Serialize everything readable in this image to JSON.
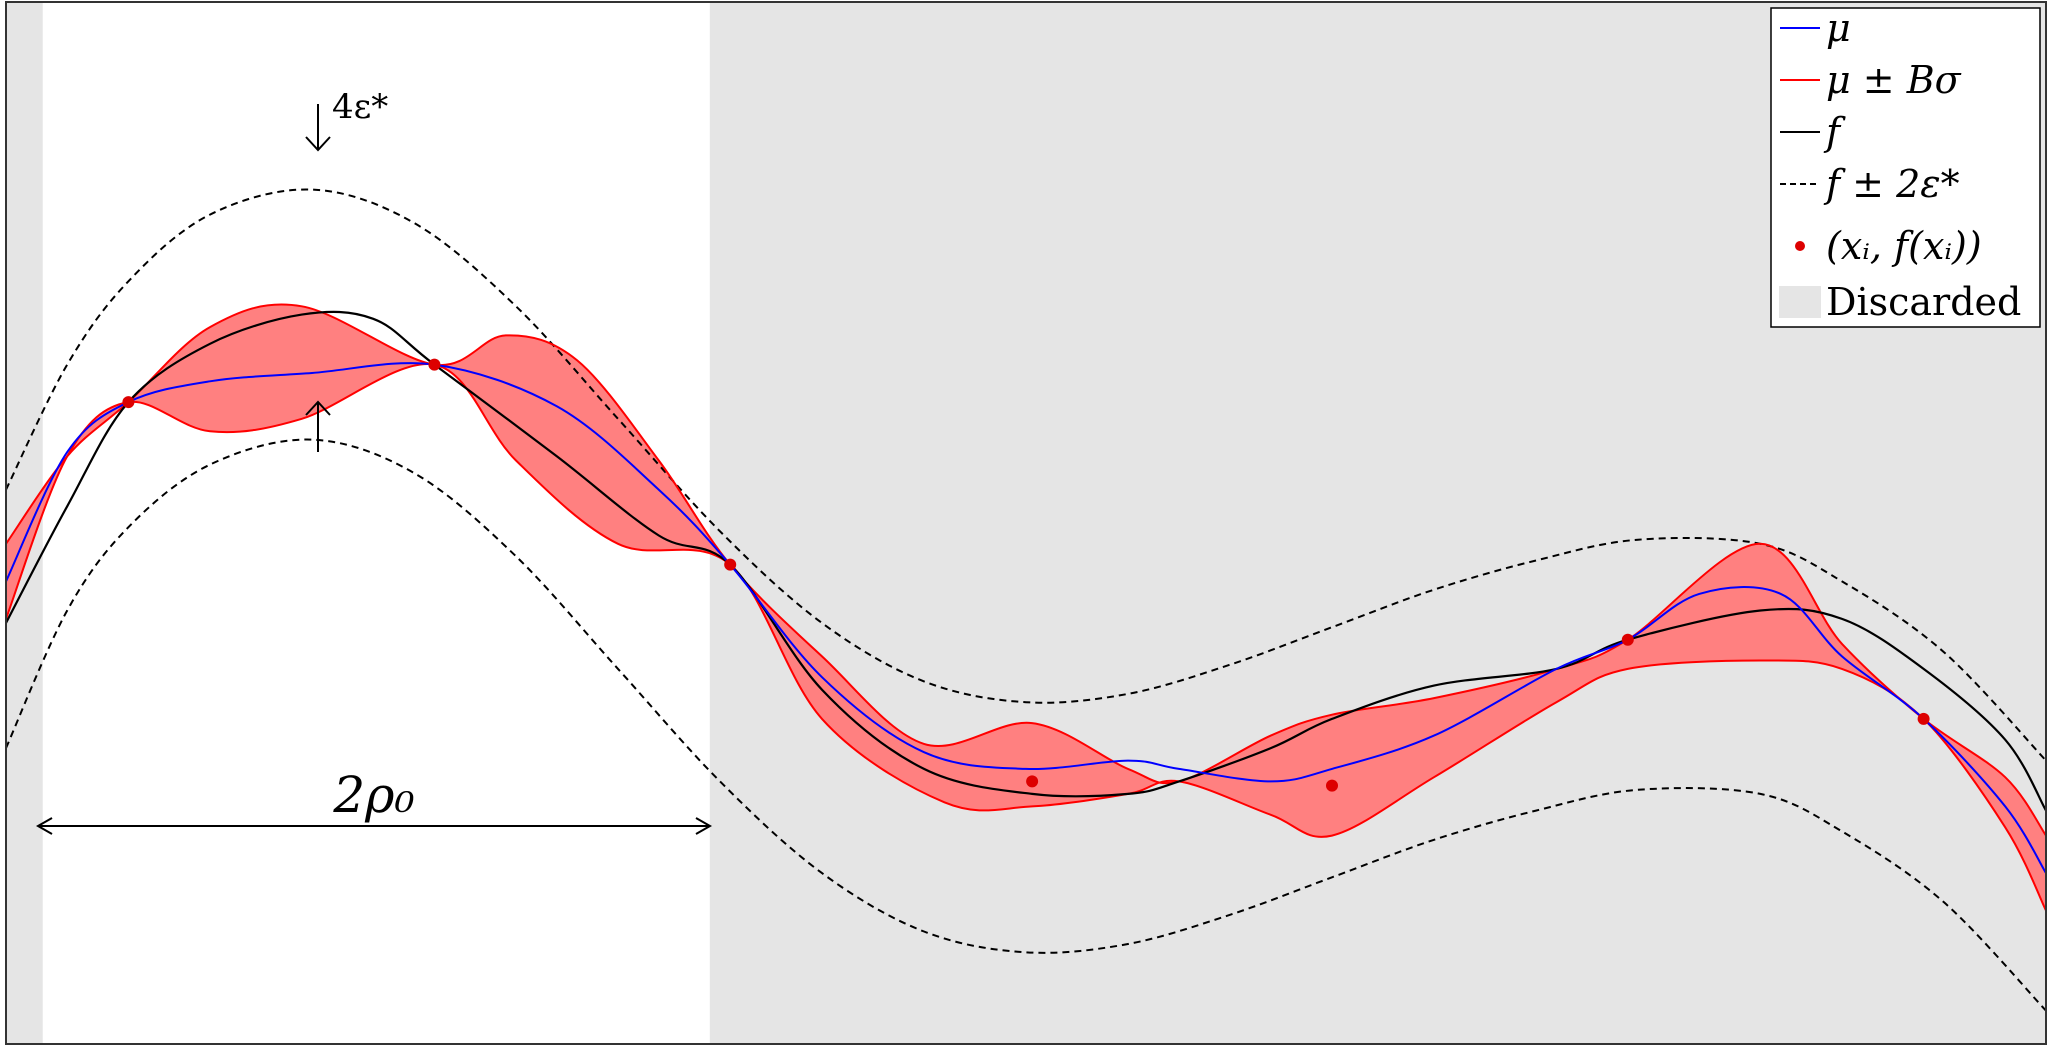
{
  "chart_data": {
    "type": "line",
    "title": "",
    "xlabel": "",
    "ylabel": "",
    "xlim": [
      0,
      1
    ],
    "ylim": [
      -1.5,
      1.0
    ],
    "grid": false,
    "legend_position": "top-right",
    "discarded_regions": [
      [
        0.0,
        0.018
      ],
      [
        0.345,
        1.0
      ]
    ],
    "series": [
      {
        "name": "μ",
        "color": "#0000ff",
        "style": "solid",
        "x": [
          0.0,
          0.03,
          0.06,
          0.1,
          0.15,
          0.21,
          0.27,
          0.32,
          0.355,
          0.4,
          0.45,
          0.5,
          0.55,
          0.575,
          0.62,
          0.65,
          0.7,
          0.76,
          0.795,
          0.83,
          0.87,
          0.9,
          0.94,
          0.98,
          1.0
        ],
        "y": [
          -0.39,
          -0.08,
          0.04,
          0.09,
          0.11,
          0.13,
          0.03,
          -0.17,
          -0.35,
          -0.62,
          -0.8,
          -0.84,
          -0.82,
          -0.84,
          -0.87,
          -0.84,
          -0.76,
          -0.6,
          -0.53,
          -0.42,
          -0.42,
          -0.57,
          -0.72,
          -0.93,
          -1.09
        ]
      },
      {
        "name": "μ ± Bσ (upper)",
        "color": "#ff0000",
        "style": "solid",
        "x": [
          0.0,
          0.03,
          0.06,
          0.1,
          0.145,
          0.21,
          0.245,
          0.28,
          0.32,
          0.355,
          0.4,
          0.45,
          0.503,
          0.55,
          0.575,
          0.62,
          0.65,
          0.7,
          0.76,
          0.795,
          0.86,
          0.9,
          0.94,
          0.98,
          1.0
        ],
        "y": [
          -0.3,
          -0.09,
          0.04,
          0.22,
          0.27,
          0.13,
          0.2,
          0.14,
          -0.1,
          -0.35,
          -0.57,
          -0.78,
          -0.73,
          -0.84,
          -0.87,
          -0.76,
          -0.71,
          -0.67,
          -0.6,
          -0.53,
          -0.3,
          -0.54,
          -0.72,
          -0.86,
          -1.0
        ]
      },
      {
        "name": "μ ± Bσ (lower)",
        "color": "#ff0000",
        "style": "solid",
        "x": [
          0.0,
          0.03,
          0.06,
          0.1,
          0.145,
          0.21,
          0.25,
          0.3,
          0.355,
          0.4,
          0.46,
          0.503,
          0.55,
          0.575,
          0.62,
          0.65,
          0.7,
          0.76,
          0.795,
          0.86,
          0.9,
          0.94,
          0.98,
          1.0
        ],
        "y": [
          -0.48,
          -0.09,
          0.04,
          -0.03,
          0.0,
          0.13,
          -0.1,
          -0.3,
          -0.35,
          -0.72,
          -0.92,
          -0.93,
          -0.9,
          -0.87,
          -0.95,
          -1.0,
          -0.86,
          -0.68,
          -0.6,
          -0.58,
          -0.6,
          -0.72,
          -0.98,
          -1.18
        ]
      },
      {
        "name": "f",
        "color": "#000000",
        "style": "solid",
        "x": [
          0.0,
          0.03,
          0.06,
          0.1,
          0.145,
          0.18,
          0.21,
          0.27,
          0.32,
          0.355,
          0.4,
          0.45,
          0.503,
          0.55,
          0.575,
          0.62,
          0.65,
          0.7,
          0.76,
          0.795,
          0.86,
          0.9,
          0.94,
          0.98,
          1.0
        ],
        "y": [
          -0.49,
          -0.21,
          0.04,
          0.18,
          0.25,
          0.24,
          0.13,
          -0.09,
          -0.28,
          -0.35,
          -0.65,
          -0.84,
          -0.9,
          -0.9,
          -0.87,
          -0.79,
          -0.72,
          -0.64,
          -0.6,
          -0.53,
          -0.46,
          -0.48,
          -0.6,
          -0.77,
          -0.94
        ]
      },
      {
        "name": "f ± 2ε* (upper)",
        "color": "#000000",
        "style": "dashed",
        "x": [
          0.0,
          0.03,
          0.06,
          0.1,
          0.15,
          0.2,
          0.25,
          0.3,
          0.35,
          0.4,
          0.45,
          0.5,
          0.55,
          0.6,
          0.65,
          0.7,
          0.75,
          0.8,
          0.86,
          0.9,
          0.95,
          1.0
        ],
        "y": [
          -0.17,
          0.13,
          0.33,
          0.49,
          0.55,
          0.47,
          0.27,
          0.0,
          -0.27,
          -0.49,
          -0.63,
          -0.68,
          -0.66,
          -0.59,
          -0.5,
          -0.41,
          -0.34,
          -0.29,
          -0.3,
          -0.39,
          -0.56,
          -0.82
        ]
      },
      {
        "name": "f ± 2ε* (lower)",
        "color": "#000000",
        "style": "dashed",
        "x": [
          0.0,
          0.03,
          0.06,
          0.1,
          0.15,
          0.2,
          0.25,
          0.3,
          0.35,
          0.4,
          0.45,
          0.5,
          0.55,
          0.6,
          0.65,
          0.7,
          0.75,
          0.8,
          0.86,
          0.9,
          0.95,
          1.0
        ],
        "y": [
          -0.79,
          -0.46,
          -0.26,
          -0.11,
          -0.05,
          -0.13,
          -0.33,
          -0.6,
          -0.87,
          -1.09,
          -1.23,
          -1.28,
          -1.26,
          -1.19,
          -1.1,
          -1.01,
          -0.94,
          -0.89,
          -0.9,
          -0.99,
          -1.16,
          -1.42
        ]
      }
    ],
    "points": {
      "name": "(x_i, f(x_i))",
      "color": "#dd0000",
      "x": [
        0.06,
        0.21,
        0.355,
        0.503,
        0.65,
        0.795,
        0.94
      ],
      "y": [
        0.04,
        0.13,
        -0.35,
        -0.87,
        -0.88,
        -0.53,
        -0.72
      ]
    },
    "legend": [
      {
        "key": "mu",
        "label": "μ",
        "color": "#0000ff",
        "kind": "line"
      },
      {
        "key": "band",
        "label": "μ ± Bσ",
        "color": "#ff0000",
        "kind": "line"
      },
      {
        "key": "f",
        "label": "f",
        "color": "#000000",
        "kind": "line"
      },
      {
        "key": "eps",
        "label": "f ± 2ε*",
        "color": "#000000",
        "kind": "dashed"
      },
      {
        "key": "pts",
        "label": "(xᵢ, f(xᵢ))",
        "color": "#dd0000",
        "kind": "marker"
      },
      {
        "key": "disc",
        "label": "Discarded",
        "color": "#e5e5e5",
        "kind": "patch"
      }
    ],
    "annotations": {
      "gap_label": "4ε*",
      "gap_x": 0.15,
      "width_label": "2ρ₀",
      "width_range": [
        0.018,
        0.345
      ]
    },
    "band_fill_color": "#ff8080",
    "discarded_color": "#e5e5e5"
  }
}
